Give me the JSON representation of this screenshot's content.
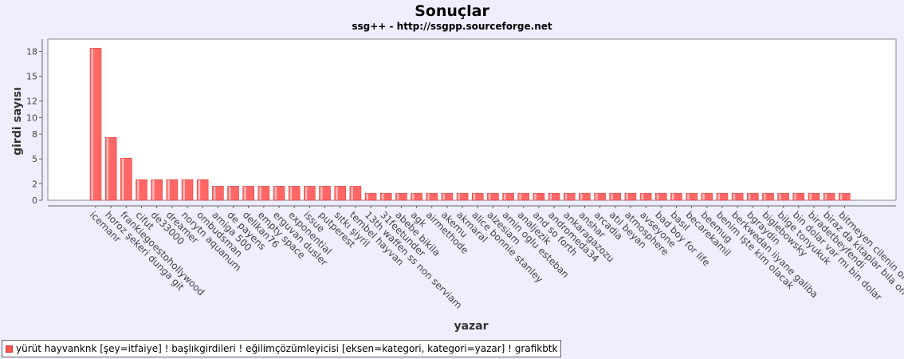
{
  "chart_data": {
    "type": "bar",
    "title": "Sonuçlar",
    "subtitle": "ssg++ - http://ssgpp.sourceforge.net",
    "xlabel": "yazar",
    "ylabel": "girdi sayısı",
    "ylim": [
      0,
      19.5
    ],
    "yticks": [
      0,
      2,
      5,
      8,
      10,
      12,
      15,
      18
    ],
    "grid": false,
    "legend_position": "bottom-left",
    "bar_color": "#ff6666",
    "categories": [
      "icemanr",
      "horoz şekeri dunga git",
      "frankiegoestohollywood",
      "cifut",
      "de33000",
      "dreamer",
      "norytn aquanum",
      "ombudsman",
      "amiga 500",
      "de payens",
      "delikan76",
      "empty space",
      "erguvan dusler",
      "exponential",
      "issue",
      "putperest",
      "sıtkı şiyril",
      "tembel hayvan",
      "13th waffen ss non serviam",
      "31feetunder",
      "abebe bikila",
      "agk",
      "airmethode",
      "akemu",
      "akmaral",
      "alice bonnie stanley",
      "alzesiam",
      "amin oglu esteban",
      "analjezik",
      "and so forth",
      "andromeda34",
      "ankaragazozu",
      "anshar",
      "arcadia",
      "atıl beyan",
      "atmosphere",
      "avseyone",
      "bad boy for life",
      "basıl",
      "becarekamil",
      "beemug",
      "benim işte kim olacak",
      "berkwedan iiyane galiba",
      "bgraydin",
      "biglebowsky",
      "bilge tonyukuk",
      "bin dolar var mı bin dolar",
      "biradetbeyfendi",
      "biraz da kitaplar bıla on",
      "bitmeyen cilenin ol"
    ],
    "values": [
      18.4,
      7.6,
      5.1,
      2.5,
      2.5,
      2.5,
      2.5,
      2.5,
      1.7,
      1.7,
      1.7,
      1.7,
      1.7,
      1.7,
      1.7,
      1.7,
      1.7,
      1.7,
      0.85,
      0.85,
      0.85,
      0.85,
      0.85,
      0.85,
      0.85,
      0.85,
      0.85,
      0.85,
      0.85,
      0.85,
      0.85,
      0.85,
      0.85,
      0.85,
      0.85,
      0.85,
      0.85,
      0.85,
      0.85,
      0.85,
      0.85,
      0.85,
      0.85,
      0.85,
      0.85,
      0.85,
      0.85,
      0.85,
      0.85,
      0.85
    ]
  },
  "legend": {
    "label": "yürüt hayvanknk [şey=itfaiye] ! başlıkgirdileri ! eğilimçözümleyicisi [eksen=kategori, kategori=yazar] ! grafikbtk"
  }
}
